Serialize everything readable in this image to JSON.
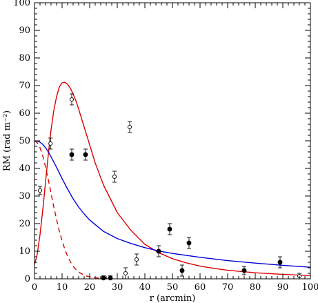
{
  "chart_data": {
    "type": "scatter",
    "xlabel": "r (arcmin)",
    "ylabel": "RM (rad m⁻²)",
    "xlim": [
      0,
      100
    ],
    "ylim": [
      0,
      100
    ],
    "x_ticks": [
      0,
      10,
      20,
      30,
      40,
      50,
      60,
      70,
      80,
      90,
      100
    ],
    "y_ticks": [
      0,
      10,
      20,
      30,
      40,
      50,
      60,
      70,
      80,
      90,
      100
    ],
    "grid": false,
    "series": [
      {
        "marker": "filled-circle",
        "color": "#000000",
        "points": [
          {
            "x": 13.5,
            "y": 45,
            "err": 2
          },
          {
            "x": 18.5,
            "y": 45,
            "err": 2
          },
          {
            "x": 25,
            "y": 0.3,
            "err": 0.8
          },
          {
            "x": 27.5,
            "y": 0.3,
            "err": 0.8
          },
          {
            "x": 45,
            "y": 10,
            "err": 2
          },
          {
            "x": 49,
            "y": 18,
            "err": 2
          },
          {
            "x": 53.5,
            "y": 3,
            "err": 2
          },
          {
            "x": 56,
            "y": 13,
            "err": 2
          },
          {
            "x": 76,
            "y": 3,
            "err": 1.5
          },
          {
            "x": 89,
            "y": 6,
            "err": 2
          }
        ]
      },
      {
        "marker": "open-circle",
        "color": "#000000",
        "points": [
          {
            "x": 2,
            "y": 32,
            "err": 1.5
          },
          {
            "x": 5.8,
            "y": 49,
            "err": 2
          },
          {
            "x": 13.5,
            "y": 65,
            "err": 2
          },
          {
            "x": 29,
            "y": 37,
            "err": 2
          },
          {
            "x": 33,
            "y": 2,
            "err": 2
          },
          {
            "x": 34.5,
            "y": 55,
            "err": 2
          },
          {
            "x": 37,
            "y": 7,
            "err": 2
          },
          {
            "x": 96,
            "y": 1,
            "err": 1
          }
        ]
      }
    ],
    "curves": [
      {
        "color": "#dd0000",
        "style": "solid",
        "x": [
          0,
          1,
          2,
          3,
          4,
          5,
          6,
          7,
          8,
          9,
          10,
          11,
          12,
          13,
          14,
          15,
          16,
          18,
          20,
          22,
          25,
          30,
          35,
          40,
          45,
          50,
          55,
          60,
          65,
          70,
          80,
          90,
          100
        ],
        "y": [
          5,
          9,
          16,
          25,
          35,
          45,
          54,
          61,
          66,
          69.5,
          71,
          71.2,
          70.5,
          69,
          67,
          64.5,
          61.5,
          55,
          48.5,
          42,
          34,
          24,
          17.5,
          12.5,
          9.5,
          7.3,
          5.8,
          4.6,
          3.8,
          3.1,
          2.2,
          1.6,
          1.2
        ]
      },
      {
        "color": "#0000dd",
        "style": "solid",
        "x": [
          0,
          1,
          2,
          3,
          4,
          5,
          6,
          7,
          8,
          10,
          12,
          14,
          16,
          18,
          20,
          25,
          30,
          35,
          40,
          45,
          50,
          60,
          70,
          80,
          90,
          100
        ],
        "y": [
          50,
          49.9,
          49.5,
          48.7,
          47.5,
          46,
          44.2,
          42.3,
          40.4,
          36.3,
          32.5,
          29,
          26,
          23.5,
          21.3,
          17.2,
          14.6,
          12.8,
          11.3,
          10.1,
          9.2,
          7.8,
          6.6,
          5.7,
          4.9,
          4.2
        ]
      },
      {
        "color": "#dd0000",
        "style": "dashed",
        "x": [
          0,
          1,
          2,
          3,
          4,
          5,
          6,
          7,
          8,
          9,
          10,
          11,
          12,
          13,
          14,
          15,
          16,
          18,
          20,
          22,
          25,
          28
        ],
        "y": [
          50,
          49.3,
          47.5,
          44.5,
          40.5,
          36,
          31,
          26,
          21.5,
          17.3,
          13.8,
          10.7,
          8.2,
          6.2,
          4.6,
          3.4,
          2.5,
          1.3,
          0.7,
          0.35,
          0.15,
          0.05
        ]
      }
    ]
  }
}
